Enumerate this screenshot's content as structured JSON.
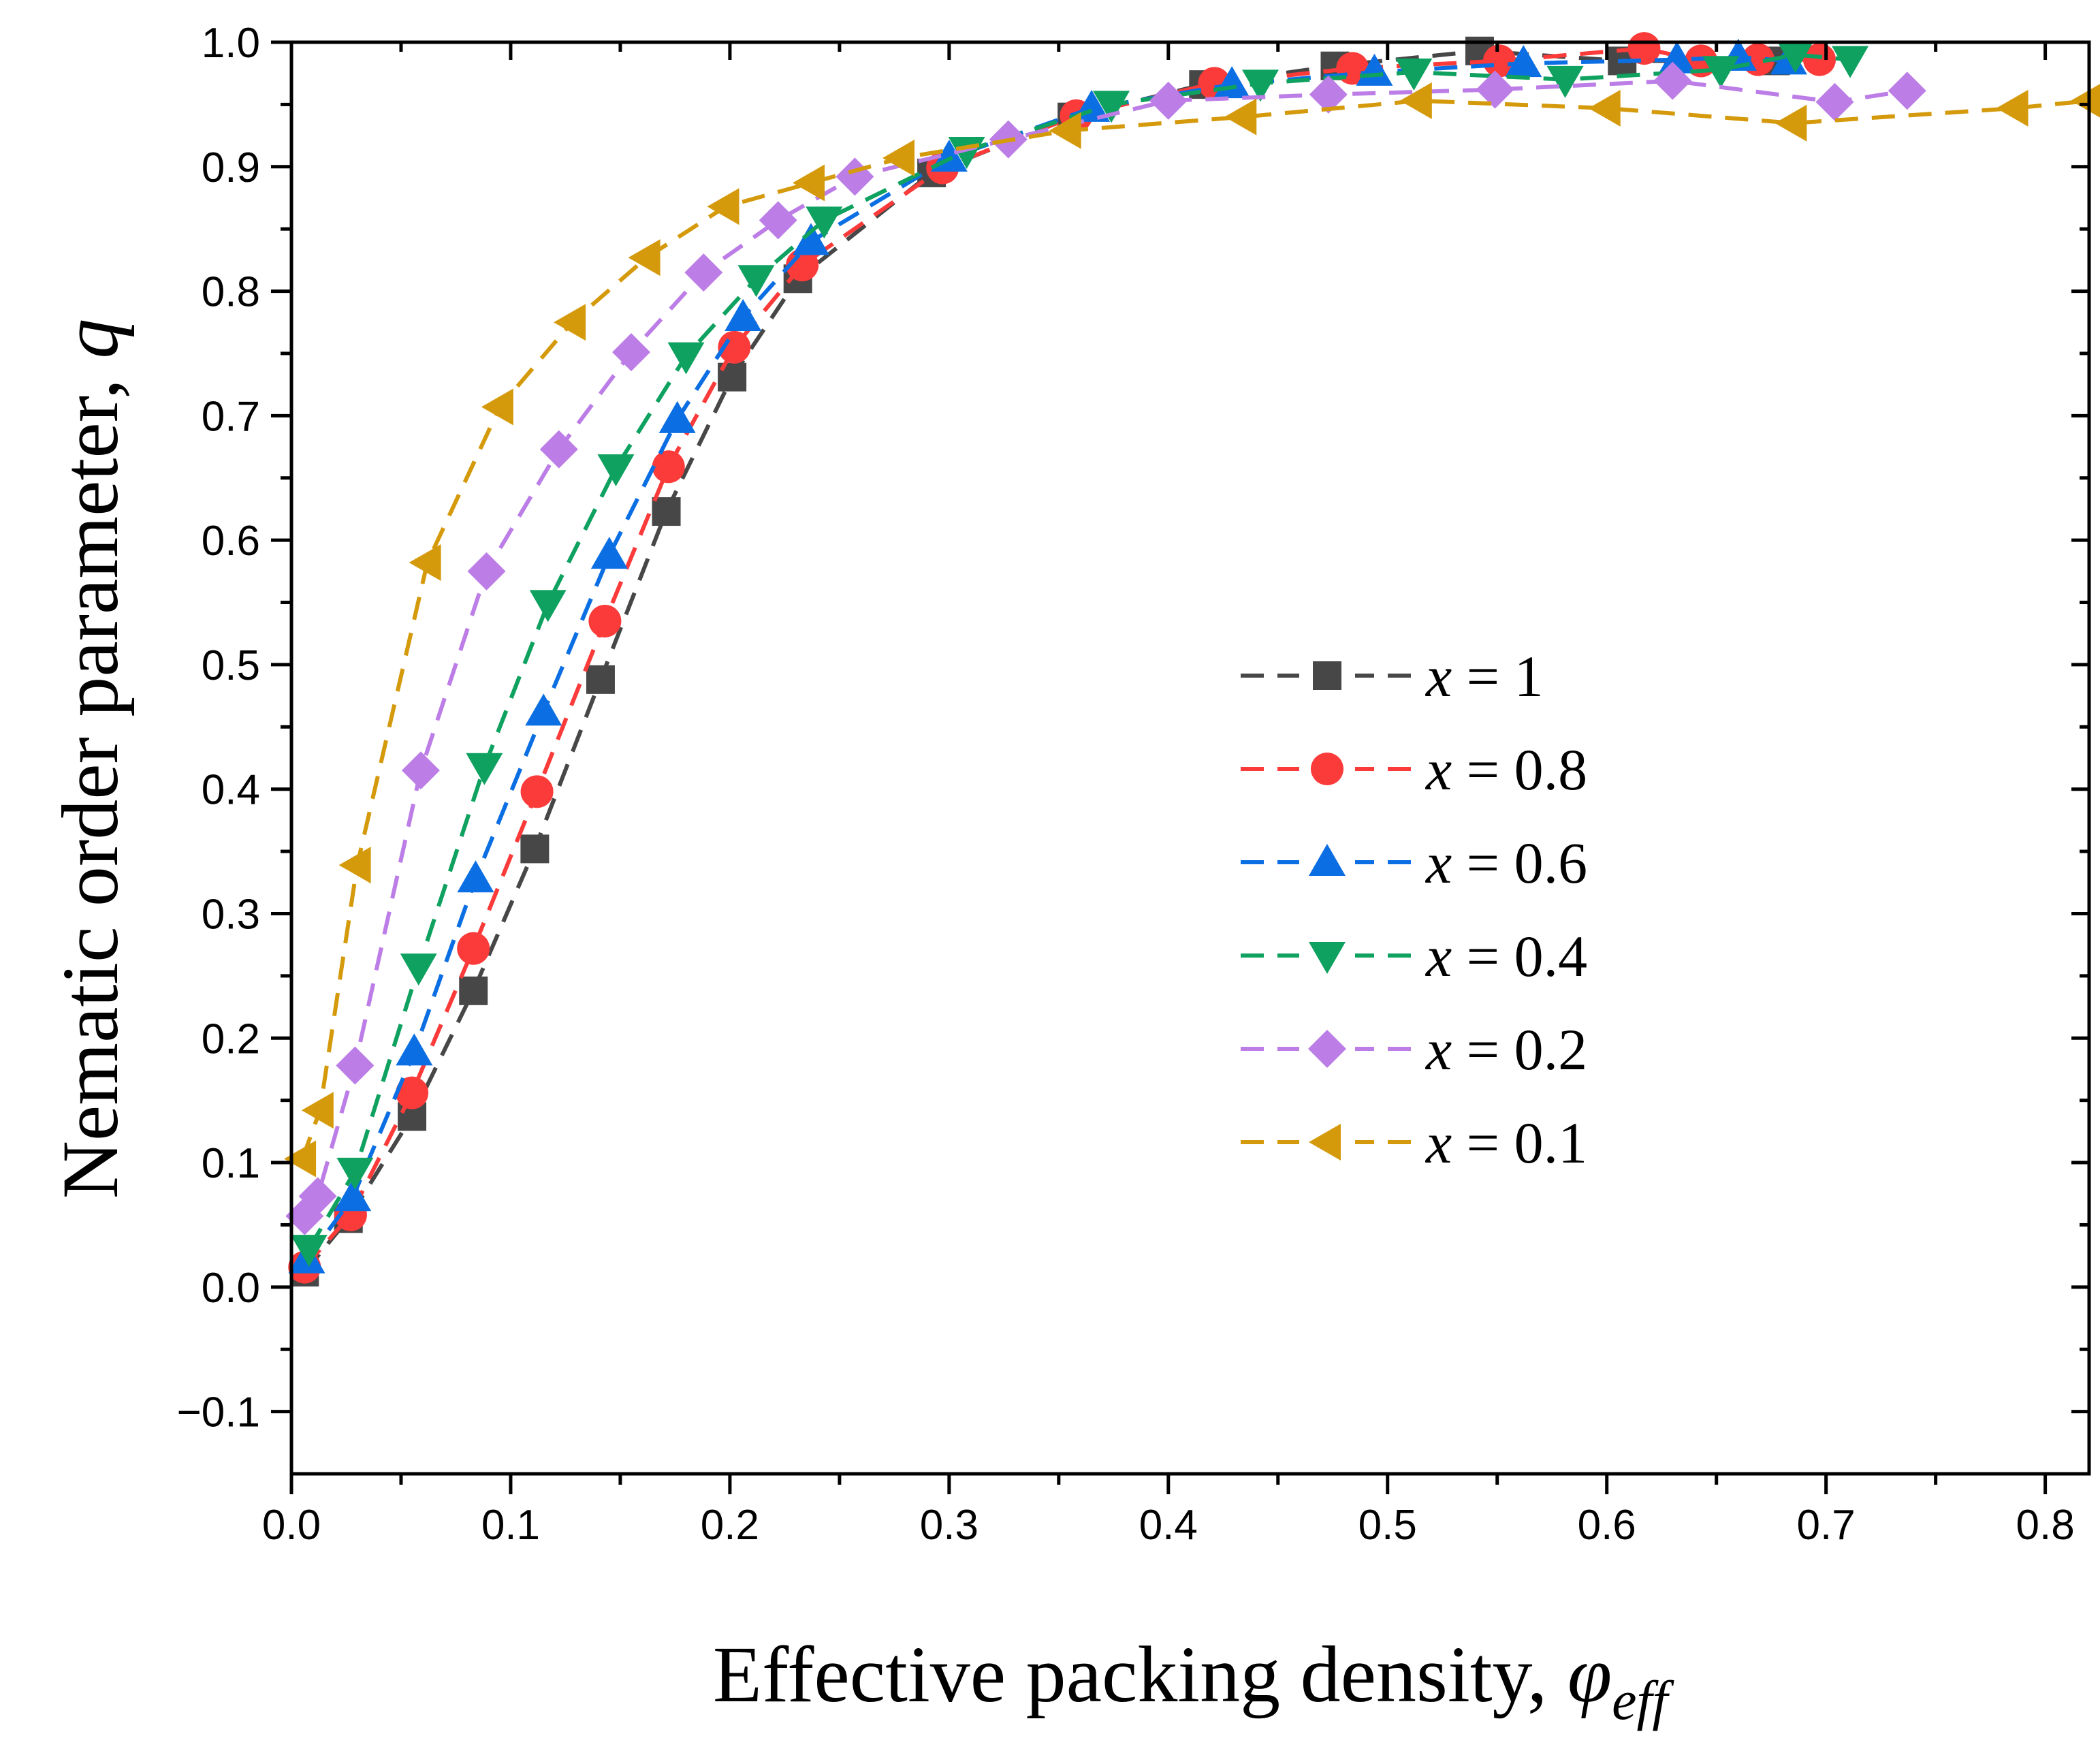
{
  "chart_data": {
    "type": "scatter",
    "xlabel": "Effective packing density, ",
    "xlabel_symbol": "φ",
    "xlabel_subscript": "eff",
    "ylabel": "Nematic order parameter, ",
    "ylabel_symbol": "q",
    "xlim": [
      0.0,
      0.82
    ],
    "ylim": [
      -0.15,
      1.0
    ],
    "xticks": [
      0.0,
      0.1,
      0.2,
      0.3,
      0.4,
      0.5,
      0.6,
      0.7,
      0.8
    ],
    "xtick_labels": [
      "0.0",
      "0.1",
      "0.2",
      "0.3",
      "0.4",
      "0.5",
      "0.6",
      "0.7",
      "0.8"
    ],
    "yticks": [
      -0.1,
      0.0,
      0.1,
      0.2,
      0.3,
      0.4,
      0.5,
      0.6,
      0.7,
      0.8,
      0.9,
      1.0
    ],
    "ytick_labels": [
      "−0.1",
      "0.0",
      "0.1",
      "0.2",
      "0.3",
      "0.4",
      "0.5",
      "0.6",
      "0.7",
      "0.8",
      "0.9",
      "1.0"
    ],
    "grid": false,
    "legend_position": "center-right",
    "series": [
      {
        "name": "x = 1",
        "legend_var": "x",
        "legend_value": "= 1",
        "marker": "square",
        "color": "#474747",
        "x": [
          0.006,
          0.026,
          0.055,
          0.083,
          0.111,
          0.141,
          0.171,
          0.201,
          0.231,
          0.292,
          0.356,
          0.416,
          0.476,
          0.542,
          0.607,
          0.677
        ],
        "y": [
          0.012,
          0.055,
          0.137,
          0.238,
          0.352,
          0.488,
          0.623,
          0.731,
          0.81,
          0.895,
          0.94,
          0.966,
          0.981,
          0.993,
          0.985,
          0.985
        ]
      },
      {
        "name": "x = 0.8",
        "legend_var": "x",
        "legend_value": "= 0.8",
        "marker": "circle",
        "color": "#fb3a3a",
        "x": [
          0.006,
          0.027,
          0.055,
          0.083,
          0.112,
          0.143,
          0.172,
          0.202,
          0.233,
          0.297,
          0.358,
          0.421,
          0.484,
          0.551,
          0.617,
          0.643,
          0.669,
          0.697
        ],
        "y": [
          0.016,
          0.058,
          0.156,
          0.272,
          0.398,
          0.535,
          0.659,
          0.755,
          0.821,
          0.899,
          0.941,
          0.967,
          0.979,
          0.985,
          0.995,
          0.985,
          0.986,
          0.986
        ]
      },
      {
        "name": "x = 0.6",
        "legend_var": "x",
        "legend_value": "= 0.6",
        "marker": "triangle-up",
        "color": "#0b6fe3",
        "x": [
          0.007,
          0.028,
          0.056,
          0.084,
          0.115,
          0.145,
          0.176,
          0.206,
          0.237,
          0.3,
          0.365,
          0.429,
          0.494,
          0.562,
          0.632,
          0.66,
          0.683
        ],
        "y": [
          0.022,
          0.072,
          0.189,
          0.328,
          0.462,
          0.588,
          0.697,
          0.779,
          0.84,
          0.907,
          0.947,
          0.966,
          0.976,
          0.983,
          0.986,
          0.988,
          0.985
        ]
      },
      {
        "name": "x = 0.4",
        "legend_var": "x",
        "legend_value": "= 0.4",
        "marker": "triangle-down",
        "color": "#0ea15f",
        "x": [
          0.008,
          0.029,
          0.058,
          0.088,
          0.117,
          0.148,
          0.18,
          0.212,
          0.243,
          0.308,
          0.374,
          0.442,
          0.512,
          0.581,
          0.652,
          0.686,
          0.711
        ],
        "y": [
          0.031,
          0.093,
          0.257,
          0.418,
          0.549,
          0.658,
          0.748,
          0.81,
          0.857,
          0.913,
          0.95,
          0.967,
          0.976,
          0.97,
          0.978,
          0.99,
          0.986
        ]
      },
      {
        "name": "x = 0.2",
        "legend_var": "x",
        "legend_value": "= 0.2",
        "marker": "diamond",
        "color": "#bc7ee6",
        "x": [
          0.006,
          0.012,
          0.029,
          0.059,
          0.089,
          0.122,
          0.155,
          0.188,
          0.222,
          0.257,
          0.327,
          0.4,
          0.473,
          0.549,
          0.63,
          0.704,
          0.737
        ],
        "y": [
          0.057,
          0.073,
          0.178,
          0.415,
          0.575,
          0.673,
          0.751,
          0.815,
          0.857,
          0.892,
          0.922,
          0.953,
          0.958,
          0.962,
          0.969,
          0.952,
          0.961
        ]
      },
      {
        "name": "x = 0.1",
        "legend_var": "x",
        "legend_value": "= 0.1",
        "marker": "triangle-left",
        "color": "#d59a0c",
        "x": [
          0.005,
          0.013,
          0.03,
          0.062,
          0.095,
          0.128,
          0.162,
          0.198,
          0.237,
          0.278,
          0.354,
          0.434,
          0.514,
          0.6,
          0.685,
          0.786,
          0.82
        ],
        "y": [
          0.103,
          0.142,
          0.339,
          0.582,
          0.707,
          0.775,
          0.827,
          0.868,
          0.887,
          0.907,
          0.929,
          0.94,
          0.953,
          0.947,
          0.935,
          0.947,
          0.953
        ]
      }
    ]
  }
}
